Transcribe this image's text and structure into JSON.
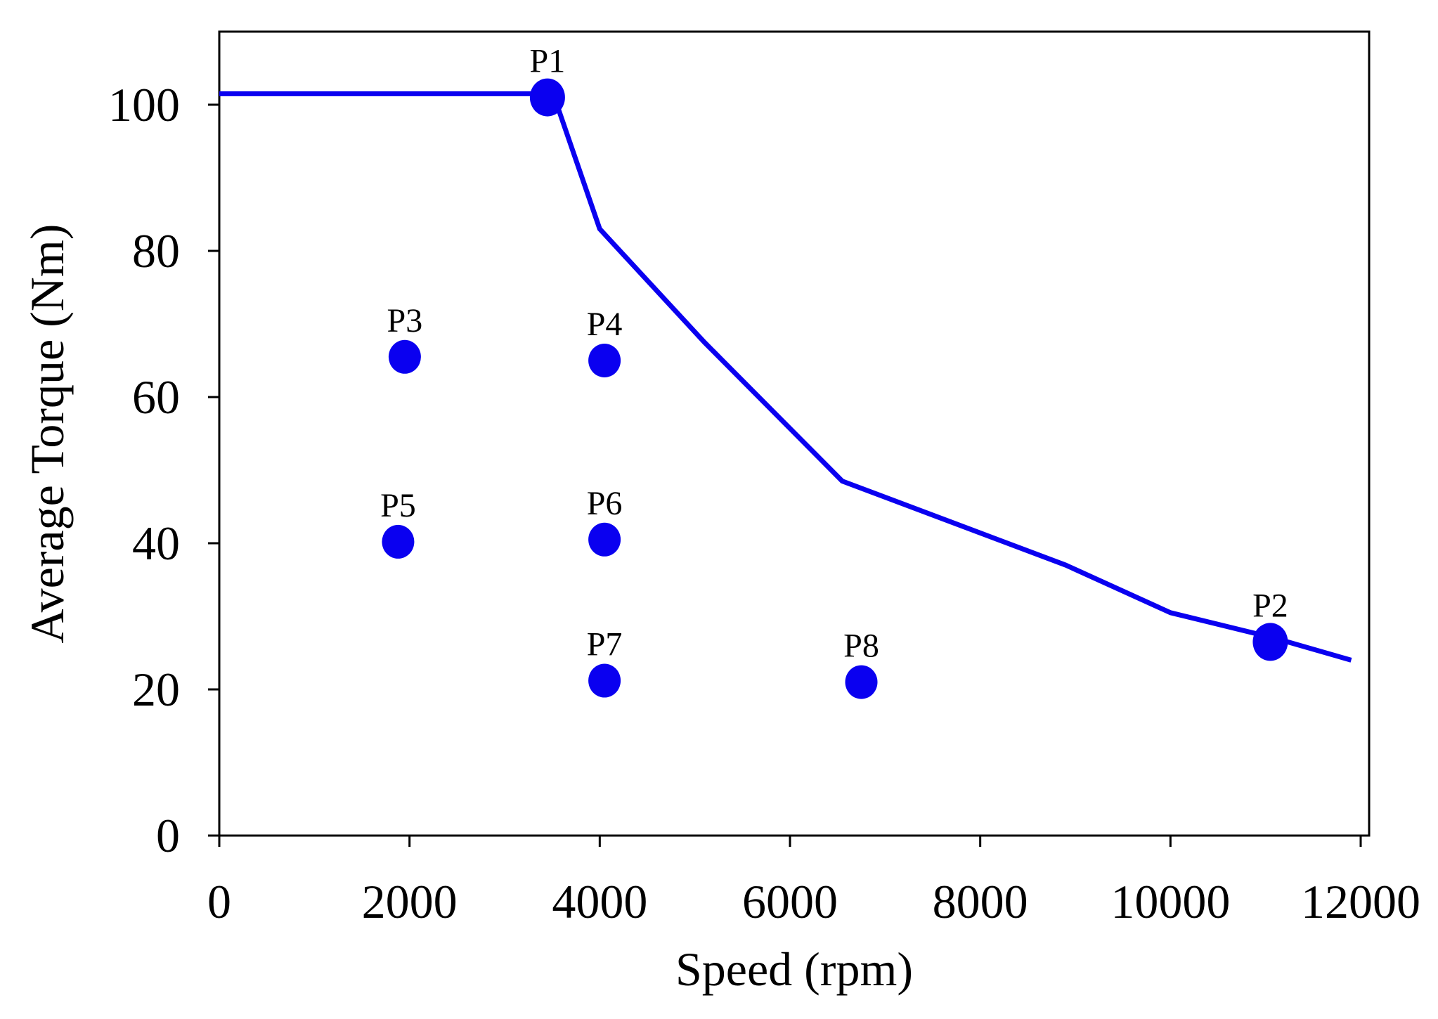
{
  "colors": {
    "series": "#0a00f0",
    "axis": "#000000",
    "background": "#ffffff"
  },
  "chart_data": {
    "type": "line",
    "xlabel": "Speed (rpm)",
    "ylabel": "Average Torque (Nm)",
    "xlim": [
      0,
      12100
    ],
    "ylim": [
      0,
      110
    ],
    "x_ticks": [
      0,
      2000,
      4000,
      6000,
      8000,
      10000,
      12000
    ],
    "x_tick_labels": [
      "0",
      "2000",
      "4000",
      "6000",
      "8000",
      "10000",
      "12000"
    ],
    "y_ticks": [
      0,
      20,
      40,
      60,
      80,
      100
    ],
    "y_tick_labels": [
      "0",
      "20",
      "40",
      "60",
      "80",
      "100"
    ],
    "grid": false,
    "series": [
      {
        "type": "line",
        "x": [
          0,
          3450,
          3550,
          4000,
          5100,
          6550,
          8900,
          10000,
          11100,
          11900
        ],
        "y": [
          101.5,
          101.5,
          100,
          83,
          67.5,
          48.5,
          37,
          30.5,
          27,
          24
        ]
      },
      {
        "type": "scatter",
        "points": [
          {
            "label": "P1",
            "x": 3450,
            "y": 101
          },
          {
            "label": "P2",
            "x": 11050,
            "y": 26.5
          },
          {
            "label": "P3",
            "x": 1950,
            "y": 65.5
          },
          {
            "label": "P4",
            "x": 4050,
            "y": 65
          },
          {
            "label": "P5",
            "x": 1880,
            "y": 40.2
          },
          {
            "label": "P6",
            "x": 4050,
            "y": 40.5
          },
          {
            "label": "P7",
            "x": 4050,
            "y": 21.2
          },
          {
            "label": "P8",
            "x": 6750,
            "y": 21
          }
        ]
      }
    ]
  }
}
